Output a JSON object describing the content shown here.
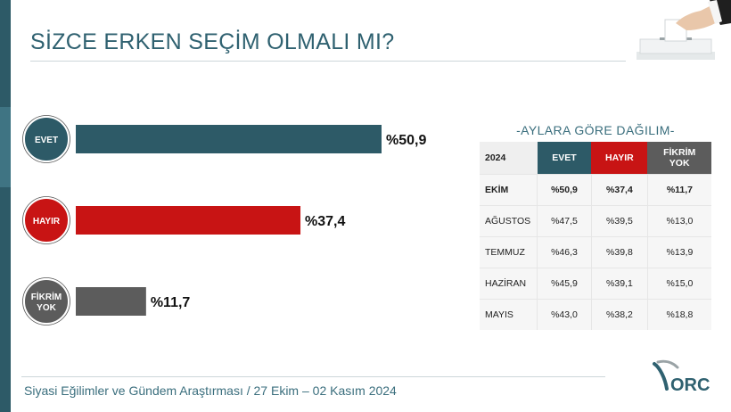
{
  "title": "SİZCE ERKEN SEÇİM OLMALI MI?",
  "chart_data": {
    "type": "bar",
    "orientation": "horizontal",
    "categories": [
      "EVET",
      "HAYIR",
      "FİKRİM YOK"
    ],
    "values": [
      50.9,
      37.4,
      11.7
    ],
    "value_labels": [
      "%50,9",
      "%37,4",
      "%11,7"
    ],
    "colors": [
      "#2d5a67",
      "#c81414",
      "#5c5c5c"
    ],
    "title": "SİZCE ERKEN SEÇİM OLMALI MI?",
    "xlabel": "",
    "ylabel": "",
    "xlim": [
      0,
      100
    ],
    "grid": false,
    "legend": "none"
  },
  "categories": {
    "evet": "EVET",
    "hayir": "HAYIR",
    "fikrim_line1": "FİKRİM",
    "fikrim_line2": "YOK"
  },
  "monthly": {
    "title": "-AYLARA GÖRE DAĞILIM-",
    "header": {
      "year": "2024",
      "evet": "EVET",
      "hayir": "HAYIR",
      "fikrim_line1": "FİKRİM",
      "fikrim_line2": "YOK"
    },
    "rows": [
      {
        "month": "EKİM",
        "evet": "%50,9",
        "hayir": "%37,4",
        "fikrim": "%11,7"
      },
      {
        "month": "AĞUSTOS",
        "evet": "%47,5",
        "hayir": "%39,5",
        "fikrim": "%13,0"
      },
      {
        "month": "TEMMUZ",
        "evet": "%46,3",
        "hayir": "%39,8",
        "fikrim": "%13,9"
      },
      {
        "month": "HAZİRAN",
        "evet": "%45,9",
        "hayir": "%39,1",
        "fikrim": "%15,0"
      },
      {
        "month": "MAYIS",
        "evet": "%43,0",
        "hayir": "%38,2",
        "fikrim": "%18,8"
      }
    ]
  },
  "footer": "Siyasi Eğilimler ve Gündem Araştırması / 27 Ekim – 02 Kasım 2024",
  "logo": {
    "text": "ORC"
  },
  "icons": {
    "ballot": "ballot-box-hand-icon",
    "logo": "orc-logo-icon"
  }
}
